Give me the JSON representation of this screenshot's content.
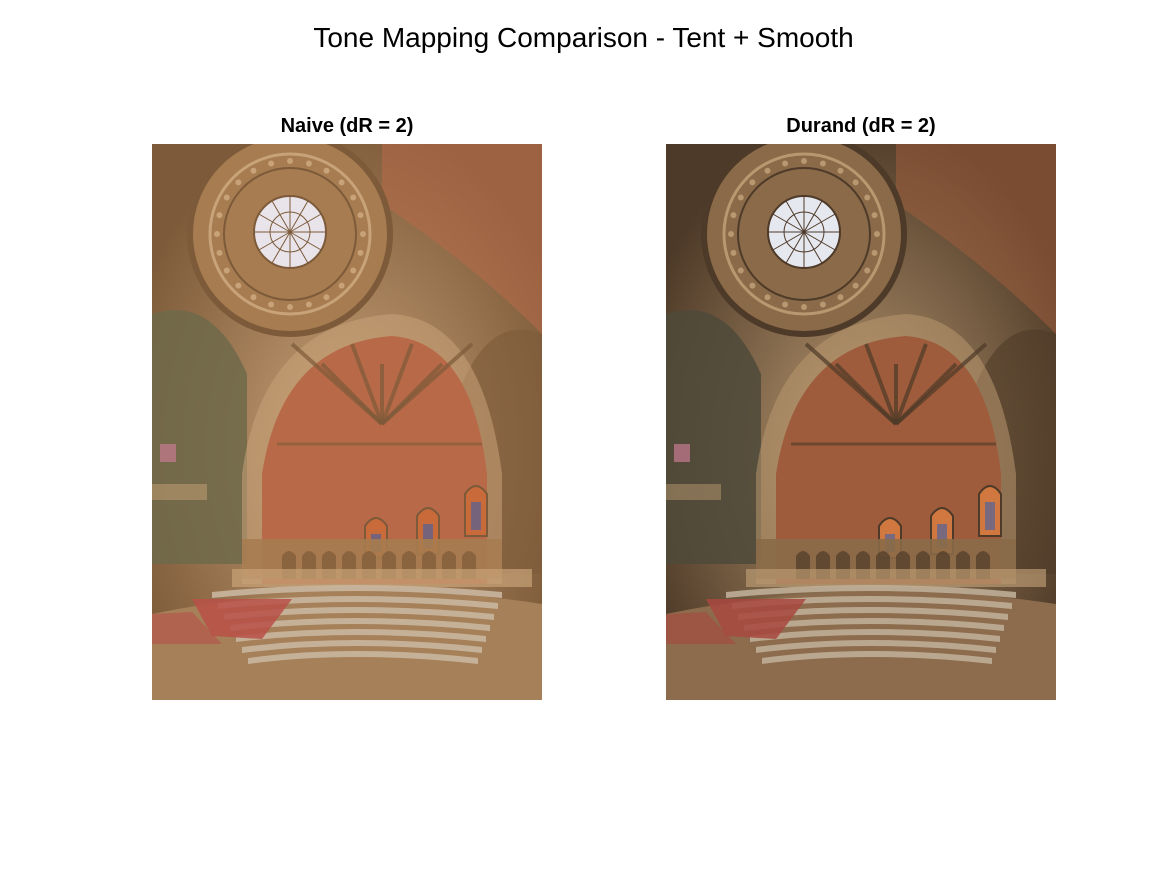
{
  "figure": {
    "title": "Tone Mapping Comparison - Tent + Smooth"
  },
  "panels": [
    {
      "title": "Naive (dR = 2)",
      "palette": {
        "base": "#a67c50",
        "shadow": "#7d5a39",
        "highlight": "#c8a278",
        "vault": "#b86a48",
        "window": "#e8e4ea",
        "stained": "#c86a3a",
        "floor": "#a58058",
        "stairs": "#c9b6a0",
        "carpet": "#b85048",
        "side": "#6f6a4a"
      }
    },
    {
      "title": "Durand (dR = 2)",
      "palette": {
        "base": "#8a6a48",
        "shadow": "#4e3a28",
        "highlight": "#b89870",
        "vault": "#9e5c3c",
        "window": "#e6e8f0",
        "stained": "#d07840",
        "floor": "#8c6c4c",
        "stairs": "#bfae98",
        "carpet": "#a84840",
        "side": "#4f4a3a"
      }
    }
  ]
}
